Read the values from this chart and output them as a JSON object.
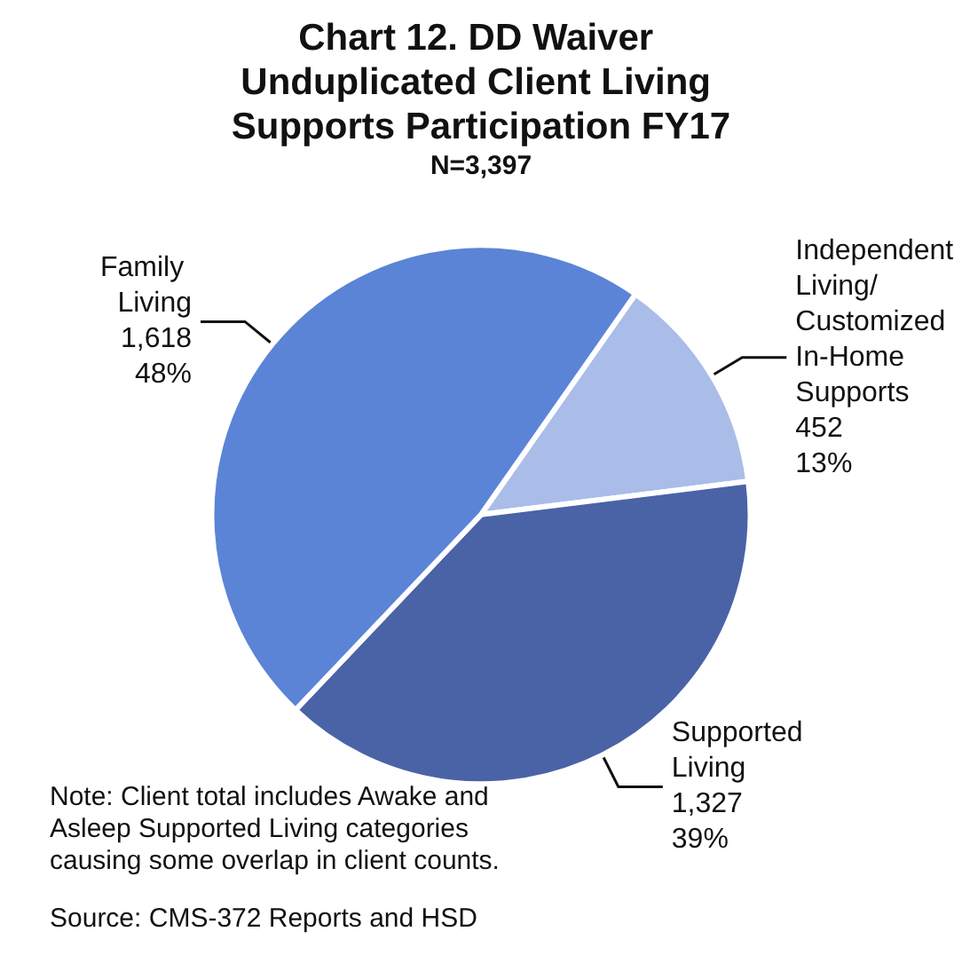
{
  "chart_data": {
    "type": "pie",
    "title": "Chart 12. DD Waiver Unduplicated Client Living Supports Participation FY17",
    "subtitle": "N=3,397",
    "categories": [
      "Independent Living/ Customized In-Home Supports",
      "Supported Living",
      "Family Living"
    ],
    "values": [
      452,
      1327,
      1618
    ],
    "value_labels": [
      "452\n13%",
      "1,327\n39%",
      "1,618\n48%"
    ],
    "colors": [
      "#a9bde8",
      "#4a63a6",
      "#5b84d6"
    ],
    "annotations": [
      "Note: Client total includes Awake and Asleep Supported Living categories causing some overlap in client counts.",
      "Source: CMS-372 Reports and HSD"
    ],
    "legend": false
  }
}
